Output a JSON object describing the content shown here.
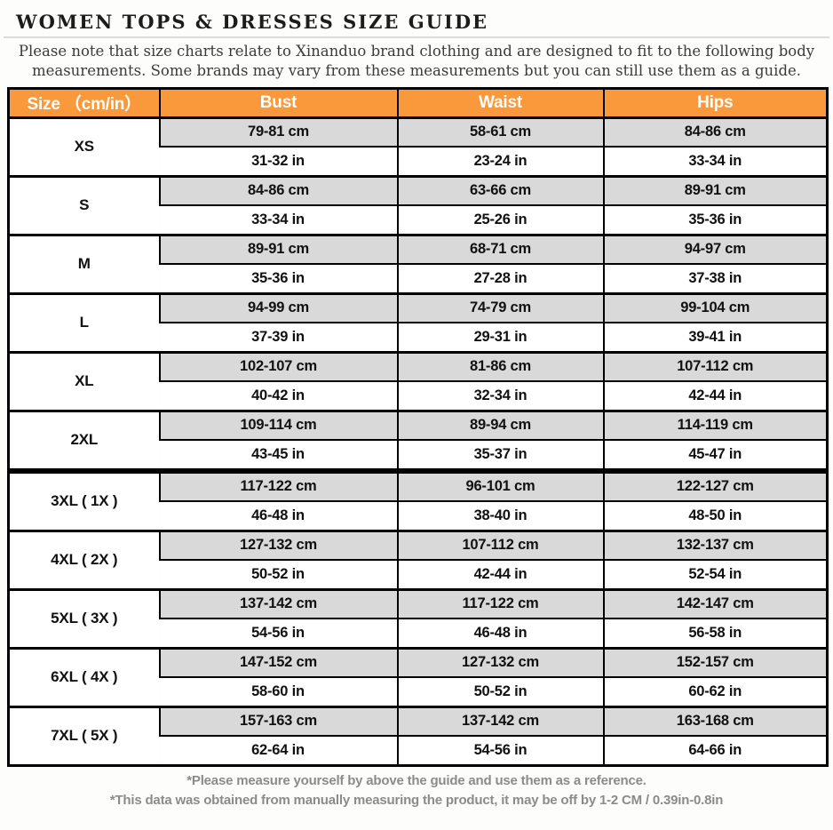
{
  "page": {
    "title": "WOMEN TOPS & DRESSES SIZE GUIDE",
    "subtitle_line1": "Please note that size charts relate to  Xinanduo brand clothing and are designed to fit to the following body",
    "subtitle_line2": "measurements. Some brands may vary from these measurements but you can still use them as a guide.",
    "note1": "*Please measure yourself by above the guide and use them as a reference.",
    "note2": "*This data was obtained from manually measuring the product, it may be off by 1-2 CM / 0.39in-0.8in"
  },
  "colors": {
    "header_bg": "#f9993b",
    "header_text": "#ffffff",
    "cm_row_bg": "#d9d9d9",
    "in_row_bg": "#ffffff",
    "border": "#000000",
    "note_text": "#8b8b8b"
  },
  "table": {
    "headers": [
      "Size （cm/in）",
      "Bust",
      "Waist",
      "Hips"
    ],
    "groups": [
      {
        "size": "XS",
        "cm": [
          "79-81 cm",
          "58-61 cm",
          "84-86 cm"
        ],
        "in": [
          "31-32 in",
          "23-24 in",
          "33-34 in"
        ]
      },
      {
        "size": "S",
        "cm": [
          "84-86 cm",
          "63-66 cm",
          "89-91 cm"
        ],
        "in": [
          "33-34 in",
          "25-26 in",
          "35-36 in"
        ]
      },
      {
        "size": "M",
        "cm": [
          "89-91 cm",
          "68-71 cm",
          "94-97 cm"
        ],
        "in": [
          "35-36 in",
          "27-28 in",
          "37-38 in"
        ]
      },
      {
        "size": "L",
        "cm": [
          "94-99 cm",
          "74-79 cm",
          "99-104 cm"
        ],
        "in": [
          "37-39 in",
          "29-31 in",
          "39-41 in"
        ]
      },
      {
        "size": "XL",
        "cm": [
          "102-107 cm",
          "81-86 cm",
          "107-112 cm"
        ],
        "in": [
          "40-42 in",
          "32-34 in",
          "42-44 in"
        ]
      },
      {
        "size": "2XL",
        "cm": [
          "109-114 cm",
          "89-94 cm",
          "114-119 cm"
        ],
        "in": [
          "43-45 in",
          "35-37 in",
          "45-47 in"
        ]
      },
      {
        "size": "3XL ( 1X )",
        "divider_before": true,
        "cm": [
          "117-122 cm",
          "96-101 cm",
          "122-127 cm"
        ],
        "in": [
          "46-48 in",
          "38-40 in",
          "48-50 in"
        ]
      },
      {
        "size": "4XL ( 2X )",
        "cm": [
          "127-132 cm",
          "107-112 cm",
          "132-137 cm"
        ],
        "in": [
          "50-52 in",
          "42-44 in",
          "52-54 in"
        ]
      },
      {
        "size": "5XL ( 3X )",
        "cm": [
          "137-142 cm",
          "117-122 cm",
          "142-147 cm"
        ],
        "in": [
          "54-56 in",
          "46-48 in",
          "56-58 in"
        ]
      },
      {
        "size": "6XL ( 4X )",
        "cm": [
          "147-152 cm",
          "127-132 cm",
          "152-157 cm"
        ],
        "in": [
          "58-60 in",
          "50-52 in",
          "60-62 in"
        ]
      },
      {
        "size": "7XL ( 5X )",
        "cm": [
          "157-163 cm",
          "137-142 cm",
          "163-168 cm"
        ],
        "in": [
          "62-64 in",
          "54-56 in",
          "64-66 in"
        ]
      }
    ]
  }
}
